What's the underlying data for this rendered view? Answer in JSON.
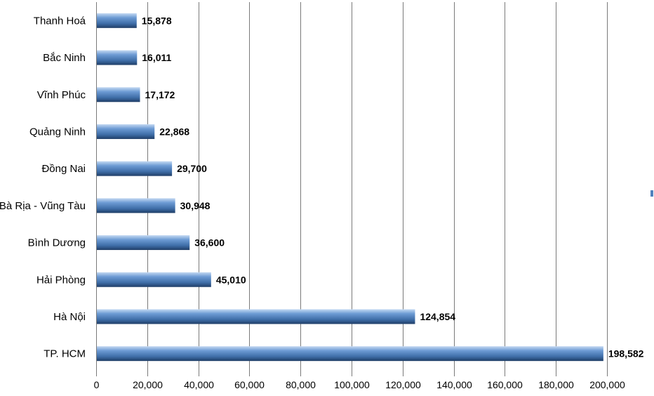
{
  "chart_data": {
    "type": "bar",
    "orientation": "horizontal",
    "categories": [
      "Thanh Hoá",
      "Bắc Ninh",
      "Vĩnh Phúc",
      "Quảng Ninh",
      "Đồng Nai",
      "Bà Rịa - Vũng Tàu",
      "Bình Dương",
      "Hải Phòng",
      "Hà Nội",
      "TP. HCM"
    ],
    "values": [
      15878,
      16011,
      17172,
      22868,
      29700,
      30948,
      36600,
      45010,
      124854,
      198582
    ],
    "value_labels": [
      "15,878",
      "16,011",
      "17,172",
      "22,868",
      "29,700",
      "30,948",
      "36,600",
      "45,010",
      "124,854",
      "198,582"
    ],
    "x_ticks": [
      0,
      20000,
      40000,
      60000,
      80000,
      100000,
      120000,
      140000,
      160000,
      180000,
      200000
    ],
    "x_tick_labels": [
      "0",
      "20,000",
      "40,000",
      "60,000",
      "80,000",
      "100,000",
      "120,000",
      "140,000",
      "160,000",
      "180,000",
      "200,000"
    ],
    "xlim": [
      0,
      200000
    ],
    "grid": "vertical",
    "legend": "right",
    "colors": {
      "bar_light": "#9dbde6",
      "bar_mid": "#4f81bd",
      "bar_dark": "#1f3d66",
      "grid": "#7a7a7a"
    }
  }
}
